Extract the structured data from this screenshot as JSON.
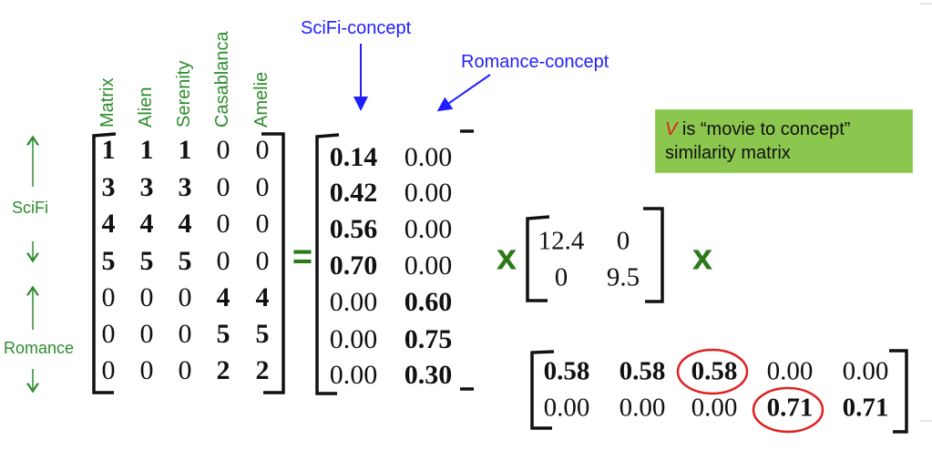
{
  "movies": [
    "Matrix",
    "Alien",
    "Serenity",
    "Casablanca",
    "Amelie"
  ],
  "genres": {
    "scifi": "SciFi",
    "romance": "Romance"
  },
  "concepts": {
    "scifi": "SciFi-concept",
    "romance": "Romance-concept"
  },
  "operators": {
    "equals": "=",
    "times": "x"
  },
  "note": {
    "variable": "V",
    "line1": " is “movie to concept”",
    "line2": "similarity matrix"
  },
  "colors": {
    "label_green": "#2e8b2e",
    "concept_blue": "#1f1fff",
    "note_bg": "#8bc64e",
    "highlight_red": "#e02020"
  },
  "matrix_A": {
    "rows": [
      [
        "1",
        "1",
        "1",
        "0",
        "0"
      ],
      [
        "3",
        "3",
        "3",
        "0",
        "0"
      ],
      [
        "4",
        "4",
        "4",
        "0",
        "0"
      ],
      [
        "5",
        "5",
        "5",
        "0",
        "0"
      ],
      [
        "0",
        "0",
        "0",
        "4",
        "4"
      ],
      [
        "0",
        "0",
        "0",
        "5",
        "5"
      ],
      [
        "0",
        "0",
        "0",
        "2",
        "2"
      ]
    ],
    "bold": [
      [
        1,
        1,
        1,
        0,
        0
      ],
      [
        1,
        1,
        1,
        0,
        0
      ],
      [
        1,
        1,
        1,
        0,
        0
      ],
      [
        1,
        1,
        1,
        0,
        0
      ],
      [
        0,
        0,
        0,
        1,
        1
      ],
      [
        0,
        0,
        0,
        1,
        1
      ],
      [
        0,
        0,
        0,
        1,
        1
      ]
    ]
  },
  "matrix_U": {
    "rows": [
      [
        "0.14",
        "0.00"
      ],
      [
        "0.42",
        "0.00"
      ],
      [
        "0.56",
        "0.00"
      ],
      [
        "0.70",
        "0.00"
      ],
      [
        "0.00",
        "0.60"
      ],
      [
        "0.00",
        "0.75"
      ],
      [
        "0.00",
        "0.30"
      ]
    ],
    "bold": [
      [
        1,
        0
      ],
      [
        1,
        0
      ],
      [
        1,
        0
      ],
      [
        1,
        0
      ],
      [
        0,
        1
      ],
      [
        0,
        1
      ],
      [
        0,
        1
      ]
    ]
  },
  "matrix_Sigma": {
    "rows": [
      [
        "12.4",
        "0"
      ],
      [
        "0",
        "9.5"
      ]
    ]
  },
  "matrix_VT": {
    "rows": [
      [
        "0.58",
        "0.58",
        "0.58",
        "0.00",
        "0.00"
      ],
      [
        "0.00",
        "0.00",
        "0.00",
        "0.71",
        "0.71"
      ]
    ],
    "bold": [
      [
        1,
        1,
        1,
        0,
        0
      ],
      [
        0,
        0,
        0,
        1,
        1
      ]
    ],
    "circled": [
      [
        0,
        2
      ],
      [
        1,
        3
      ]
    ]
  }
}
